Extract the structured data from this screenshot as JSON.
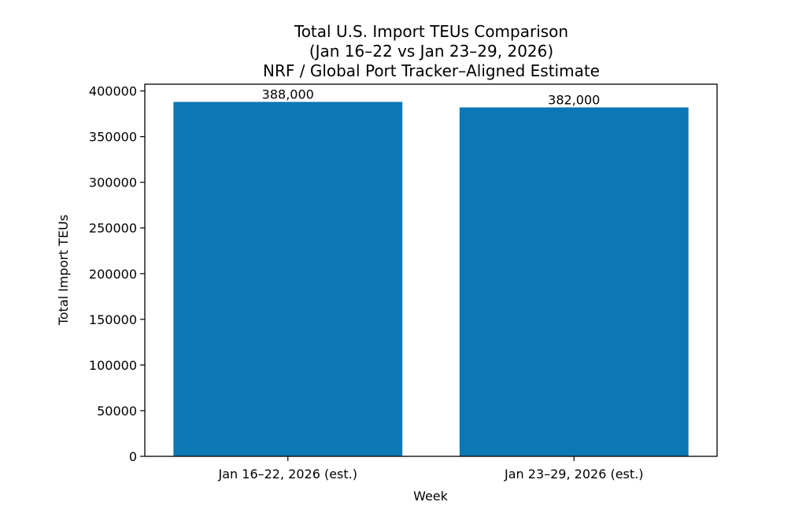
{
  "chart_data": {
    "type": "bar",
    "title_lines": [
      "Total U.S. Import TEUs Comparison",
      "(Jan 16–22 vs Jan 23–29, 2026)",
      "NRF / Global Port Tracker–Aligned Estimate"
    ],
    "xlabel": "Week",
    "ylabel": "Total Import TEUs",
    "categories": [
      "Jan 16–22, 2026 (est.)",
      "Jan 23–29, 2026 (est.)"
    ],
    "values": [
      388000,
      382000
    ],
    "value_labels": [
      "388,000",
      "382,000"
    ],
    "ylim": [
      0,
      407400
    ],
    "yticks": [
      0,
      50000,
      100000,
      150000,
      200000,
      250000,
      300000,
      350000,
      400000
    ],
    "ytick_labels": [
      "0",
      "50000",
      "100000",
      "150000",
      "200000",
      "250000",
      "300000",
      "350000",
      "400000"
    ],
    "bar_color": "#0b77b4",
    "grid": false
  }
}
